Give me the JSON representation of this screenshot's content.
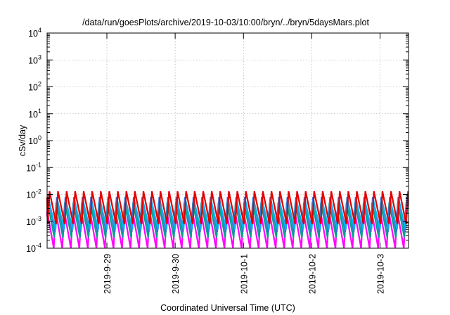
{
  "chart_data": {
    "type": "line",
    "title": "/data/run/goesPlots/archive/2019-10-03/10:00/bryn/../bryn/5daysMars.plot",
    "xlabel": "Coordinated Universal Time (UTC)",
    "ylabel": "cSv/day",
    "yscale": "log",
    "ylim": [
      0.0001,
      10000
    ],
    "xlim": [
      "2019-09-28T03:00:00",
      "2019-10-03T10:00:00"
    ],
    "grid": true,
    "legend": "none",
    "y_ticks": [
      {
        "value": 0.0001,
        "base": "10",
        "exp": "-4"
      },
      {
        "value": 0.001,
        "base": "10",
        "exp": "-3"
      },
      {
        "value": 0.01,
        "base": "10",
        "exp": "-2"
      },
      {
        "value": 0.1,
        "base": "10",
        "exp": "-1"
      },
      {
        "value": 1,
        "base": "10",
        "exp": "0"
      },
      {
        "value": 10,
        "base": "10",
        "exp": "1"
      },
      {
        "value": 100,
        "base": "10",
        "exp": "2"
      },
      {
        "value": 1000,
        "base": "10",
        "exp": "3"
      },
      {
        "value": 10000,
        "base": "10",
        "exp": "4"
      }
    ],
    "x_ticks": [
      {
        "value": "2019-09-29T00:00:00",
        "label": "2019-9-29"
      },
      {
        "value": "2019-09-30T00:00:00",
        "label": "2019-9-30"
      },
      {
        "value": "2019-10-01T00:00:00",
        "label": "2019-10-1"
      },
      {
        "value": "2019-10-02T00:00:00",
        "label": "2019-10-2"
      },
      {
        "value": "2019-10-03T00:00:00",
        "label": "2019-10-3"
      }
    ],
    "sawtooth_period_hours": 3.0,
    "series": [
      {
        "color": "#ff00ff",
        "max": 0.0025,
        "min": 9e-05
      },
      {
        "color": "#00a08a",
        "max": 0.005,
        "min": 0.00025
      },
      {
        "color": "#3a6fd8",
        "max": 0.008,
        "min": 0.0004
      },
      {
        "color": "#00b4f0",
        "max": 0.006,
        "min": 0.0005
      },
      {
        "color": "#e00000",
        "max": 0.013,
        "min": 0.0008
      }
    ]
  }
}
